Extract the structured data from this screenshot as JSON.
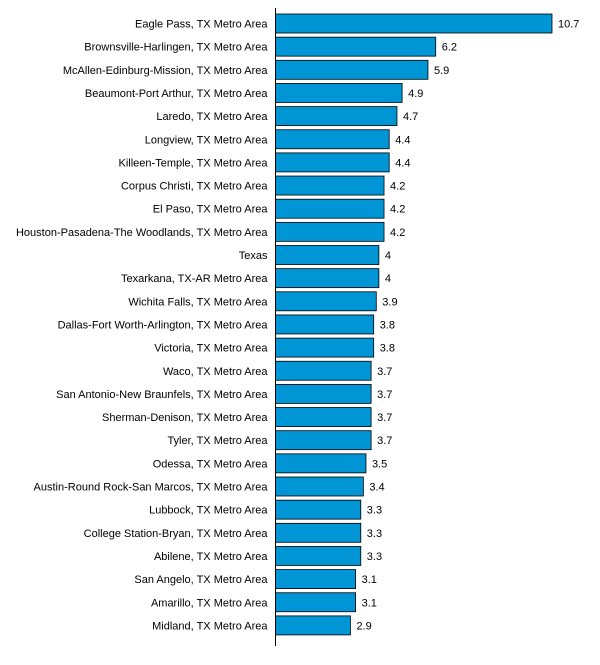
{
  "chart_data": {
    "type": "bar",
    "orientation": "horizontal",
    "title": "",
    "xlabel": "",
    "ylabel": "",
    "grid": false,
    "bar_color": "#0096d6",
    "bar_outline_color": "#000000",
    "xlim": [
      0,
      10.7
    ],
    "categories": [
      "Eagle Pass, TX Metro Area",
      "Brownsville-Harlingen, TX Metro Area",
      "McAllen-Edinburg-Mission, TX Metro Area",
      "Beaumont-Port Arthur, TX Metro Area",
      "Laredo, TX Metro Area",
      "Longview, TX Metro Area",
      "Killeen-Temple, TX Metro Area",
      "Corpus Christi, TX Metro Area",
      "El Paso, TX Metro Area",
      "Houston-Pasadena-The Woodlands, TX Metro Area",
      "Texas",
      "Texarkana, TX-AR Metro Area",
      "Wichita Falls, TX Metro Area",
      "Dallas-Fort Worth-Arlington, TX Metro Area",
      "Victoria, TX Metro Area",
      "Waco, TX Metro Area",
      "San Antonio-New Braunfels, TX Metro Area",
      "Sherman-Denison, TX Metro Area",
      "Tyler, TX Metro Area",
      "Odessa, TX Metro Area",
      "Austin-Round Rock-San Marcos, TX Metro Area",
      "Lubbock, TX Metro Area",
      "College Station-Bryan, TX Metro Area",
      "Abilene, TX Metro Area",
      "San Angelo, TX Metro Area",
      "Amarillo, TX Metro Area",
      "Midland, TX Metro Area"
    ],
    "values": [
      10.7,
      6.2,
      5.9,
      4.9,
      4.7,
      4.4,
      4.4,
      4.2,
      4.2,
      4.2,
      4,
      4,
      3.9,
      3.8,
      3.8,
      3.7,
      3.7,
      3.7,
      3.7,
      3.5,
      3.4,
      3.3,
      3.3,
      3.3,
      3.1,
      3.1,
      2.9
    ],
    "value_labels": [
      "10.7",
      "6.2",
      "5.9",
      "4.9",
      "4.7",
      "4.4",
      "4.4",
      "4.2",
      "4.2",
      "4.2",
      "4",
      "4",
      "3.9",
      "3.8",
      "3.8",
      "3.7",
      "3.7",
      "3.7",
      "3.7",
      "3.5",
      "3.4",
      "3.3",
      "3.3",
      "3.3",
      "3.1",
      "3.1",
      "2.9"
    ]
  }
}
